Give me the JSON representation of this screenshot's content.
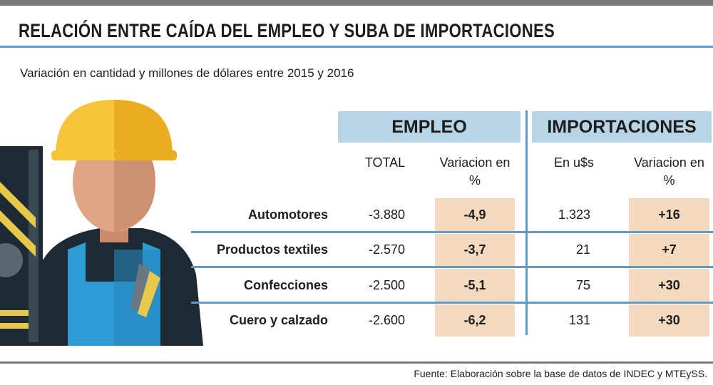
{
  "header": {
    "title": "RELACIÓN ENTRE CAÍDA DEL EMPLEO Y SUBA DE IMPORTACIONES",
    "subtitle": "Variación en cantidad y millones de dólares entre 2015 y 2016"
  },
  "table": {
    "groups": [
      "EMPLEO",
      "IMPORTACIONES"
    ],
    "columns": [
      "TOTAL",
      "Variacion en %",
      "En u$s",
      "Variacion en %"
    ],
    "rows": [
      [
        "Automotores",
        "-3.880",
        "-4,9",
        "1.323",
        "+16"
      ],
      [
        "Productos textiles",
        "-2.570",
        "-3,7",
        "21",
        "+7"
      ],
      [
        "Confecciones",
        "-2.500",
        "-5,1",
        "75",
        "+30"
      ],
      [
        "Cuero y calzado",
        "-2.600",
        "-6,2",
        "131",
        "+30"
      ]
    ]
  },
  "footer": {
    "source": "Fuente: Elaboración sobre la base de datos de INDEC y MTEySS."
  }
}
